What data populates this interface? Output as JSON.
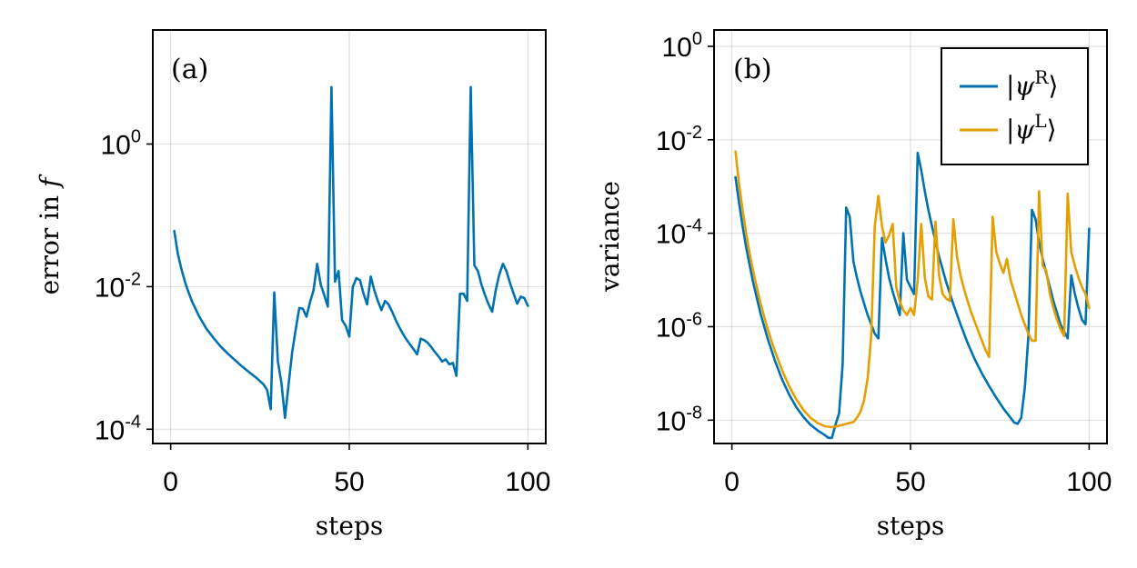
{
  "chart_data": [
    {
      "type": "line",
      "panel_label": "(a)",
      "xlabel": "steps",
      "ylabel": "error in f",
      "ylabel_text": "error in ",
      "ylabel_var": "f",
      "yscale": "log10",
      "xlim": [
        -5,
        105
      ],
      "ylim_log10": [
        -4.2,
        1.6
      ],
      "grid": true,
      "x_ticks": [
        {
          "value": 0,
          "label": "0"
        },
        {
          "value": 50,
          "label": "50"
        },
        {
          "value": 100,
          "label": "100"
        }
      ],
      "y_ticks": [
        {
          "value": 0,
          "base": "10",
          "exp": "0"
        },
        {
          "value": -2,
          "base": "10",
          "exp": "-2"
        },
        {
          "value": -4,
          "base": "10",
          "exp": "-4"
        }
      ],
      "series": [
        {
          "name": "error",
          "color": "#0072b2",
          "points": [
            [
              1,
              -1.22
            ],
            [
              2,
              -1.54
            ],
            [
              3,
              -1.75
            ],
            [
              4,
              -1.93
            ],
            [
              5,
              -2.08
            ],
            [
              6,
              -2.21
            ],
            [
              8,
              -2.42
            ],
            [
              10,
              -2.59
            ],
            [
              12,
              -2.72
            ],
            [
              14,
              -2.84
            ],
            [
              16,
              -2.94
            ],
            [
              18,
              -3.03
            ],
            [
              20,
              -3.12
            ],
            [
              22,
              -3.2
            ],
            [
              24,
              -3.28
            ],
            [
              26,
              -3.37
            ],
            [
              27,
              -3.45
            ],
            [
              28,
              -3.72
            ],
            [
              29,
              -2.08
            ],
            [
              30,
              -3.05
            ],
            [
              31,
              -3.35
            ],
            [
              32,
              -3.84
            ],
            [
              33,
              -3.38
            ],
            [
              34,
              -2.92
            ],
            [
              35,
              -2.6
            ],
            [
              36,
              -2.3
            ],
            [
              37,
              -2.31
            ],
            [
              38,
              -2.42
            ],
            [
              39,
              -2.22
            ],
            [
              40,
              -2.05
            ],
            [
              41,
              -1.68
            ],
            [
              42,
              -1.97
            ],
            [
              43,
              -2.12
            ],
            [
              44,
              -2.28
            ],
            [
              45,
              0.8
            ],
            [
              46,
              -1.93
            ],
            [
              47,
              -1.78
            ],
            [
              48,
              -2.47
            ],
            [
              49,
              -2.55
            ],
            [
              50,
              -2.7
            ],
            [
              51,
              -2.0
            ],
            [
              52,
              -1.88
            ],
            [
              53,
              -1.91
            ],
            [
              54,
              -2.1
            ],
            [
              55,
              -2.25
            ],
            [
              56,
              -1.86
            ],
            [
              57,
              -2.05
            ],
            [
              58,
              -2.2
            ],
            [
              59,
              -2.33
            ],
            [
              60,
              -2.2
            ],
            [
              61,
              -2.25
            ],
            [
              62,
              -2.35
            ],
            [
              63,
              -2.47
            ],
            [
              64,
              -2.57
            ],
            [
              65,
              -2.66
            ],
            [
              66,
              -2.74
            ],
            [
              67,
              -2.81
            ],
            [
              68,
              -2.88
            ],
            [
              69,
              -2.95
            ],
            [
              70,
              -2.73
            ],
            [
              71,
              -2.75
            ],
            [
              72,
              -2.79
            ],
            [
              73,
              -2.85
            ],
            [
              74,
              -2.92
            ],
            [
              75,
              -2.98
            ],
            [
              76,
              -3.05
            ],
            [
              77,
              -3.02
            ],
            [
              78,
              -3.09
            ],
            [
              79,
              -3.07
            ],
            [
              80,
              -3.25
            ],
            [
              81,
              -2.1
            ],
            [
              82,
              -2.1
            ],
            [
              83,
              -2.2
            ],
            [
              84,
              0.8
            ],
            [
              85,
              -1.7
            ],
            [
              86,
              -1.78
            ],
            [
              87,
              -1.97
            ],
            [
              88,
              -2.12
            ],
            [
              89,
              -2.25
            ],
            [
              90,
              -2.35
            ],
            [
              91,
              -2.05
            ],
            [
              92,
              -1.83
            ],
            [
              93,
              -1.68
            ],
            [
              94,
              -1.78
            ],
            [
              95,
              -1.95
            ],
            [
              96,
              -2.1
            ],
            [
              97,
              -2.24
            ],
            [
              98,
              -2.14
            ],
            [
              99,
              -2.16
            ],
            [
              100,
              -2.27
            ]
          ]
        }
      ]
    },
    {
      "type": "line",
      "panel_label": "(b)",
      "xlabel": "steps",
      "ylabel": "variance",
      "yscale": "log10",
      "xlim": [
        -5,
        105
      ],
      "ylim_log10": [
        -8.5,
        0.35
      ],
      "grid": true,
      "legend_position": "top-right",
      "x_ticks": [
        {
          "value": 0,
          "label": "0"
        },
        {
          "value": 50,
          "label": "50"
        },
        {
          "value": 100,
          "label": "100"
        }
      ],
      "y_ticks": [
        {
          "value": 0,
          "base": "10",
          "exp": "0"
        },
        {
          "value": -2,
          "base": "10",
          "exp": "-2"
        },
        {
          "value": -4,
          "base": "10",
          "exp": "-4"
        },
        {
          "value": -6,
          "base": "10",
          "exp": "-6"
        },
        {
          "value": -8,
          "base": "10",
          "exp": "-8"
        }
      ],
      "series": [
        {
          "name": "|ψR⟩",
          "legend_psi": "|ψ",
          "legend_sup": "R",
          "legend_close": "⟩",
          "color": "#0072b2",
          "points": [
            [
              1,
              -2.8
            ],
            [
              2,
              -3.35
            ],
            [
              3,
              -3.85
            ],
            [
              4,
              -4.3
            ],
            [
              5,
              -4.7
            ],
            [
              6,
              -5.07
            ],
            [
              8,
              -5.72
            ],
            [
              10,
              -6.25
            ],
            [
              12,
              -6.72
            ],
            [
              14,
              -7.12
            ],
            [
              16,
              -7.45
            ],
            [
              18,
              -7.72
            ],
            [
              20,
              -7.93
            ],
            [
              22,
              -8.1
            ],
            [
              24,
              -8.22
            ],
            [
              26,
              -8.32
            ],
            [
              27,
              -8.38
            ],
            [
              28,
              -8.38
            ],
            [
              29,
              -8.1
            ],
            [
              30,
              -7.85
            ],
            [
              31,
              -6.8
            ],
            [
              32,
              -3.45
            ],
            [
              33,
              -3.65
            ],
            [
              34,
              -4.6
            ],
            [
              35,
              -4.95
            ],
            [
              36,
              -5.25
            ],
            [
              37,
              -5.5
            ],
            [
              38,
              -5.75
            ],
            [
              39,
              -5.95
            ],
            [
              40,
              -6.15
            ],
            [
              41,
              -6.25
            ],
            [
              42,
              -4.1
            ],
            [
              43,
              -4.55
            ],
            [
              44,
              -4.95
            ],
            [
              45,
              -5.25
            ],
            [
              46,
              -5.5
            ],
            [
              47,
              -5.75
            ],
            [
              48,
              -4.0
            ],
            [
              49,
              -5.0
            ],
            [
              50,
              -5.15
            ],
            [
              51,
              -5.3
            ],
            [
              52,
              -2.28
            ],
            [
              53,
              -2.65
            ],
            [
              54,
              -3.1
            ],
            [
              55,
              -3.5
            ],
            [
              56,
              -3.85
            ],
            [
              58,
              -4.5
            ],
            [
              60,
              -5.05
            ],
            [
              62,
              -5.52
            ],
            [
              64,
              -5.95
            ],
            [
              66,
              -6.35
            ],
            [
              68,
              -6.7
            ],
            [
              70,
              -7.0
            ],
            [
              72,
              -7.27
            ],
            [
              74,
              -7.52
            ],
            [
              76,
              -7.75
            ],
            [
              78,
              -7.95
            ],
            [
              79,
              -8.05
            ],
            [
              80,
              -8.08
            ],
            [
              81,
              -7.95
            ],
            [
              82,
              -7.3
            ],
            [
              83,
              -6.2
            ],
            [
              84,
              -3.5
            ],
            [
              85,
              -3.7
            ],
            [
              86,
              -4.2
            ],
            [
              87,
              -4.55
            ],
            [
              88,
              -4.85
            ],
            [
              89,
              -5.15
            ],
            [
              90,
              -5.45
            ],
            [
              91,
              -5.7
            ],
            [
              92,
              -5.95
            ],
            [
              93,
              -6.1
            ],
            [
              94,
              -6.25
            ],
            [
              95,
              -4.9
            ],
            [
              96,
              -5.3
            ],
            [
              97,
              -5.6
            ],
            [
              98,
              -5.85
            ],
            [
              99,
              -5.95
            ],
            [
              100,
              -3.9
            ]
          ]
        },
        {
          "name": "|ψL⟩",
          "legend_psi": "|ψ",
          "legend_sup": "L",
          "legend_close": "⟩",
          "color": "#e69f00",
          "points": [
            [
              1,
              -2.25
            ],
            [
              2,
              -2.95
            ],
            [
              3,
              -3.5
            ],
            [
              4,
              -4.0
            ],
            [
              5,
              -4.45
            ],
            [
              6,
              -4.83
            ],
            [
              8,
              -5.5
            ],
            [
              10,
              -6.05
            ],
            [
              12,
              -6.52
            ],
            [
              14,
              -6.92
            ],
            [
              16,
              -7.27
            ],
            [
              18,
              -7.55
            ],
            [
              20,
              -7.78
            ],
            [
              22,
              -7.95
            ],
            [
              24,
              -8.06
            ],
            [
              26,
              -8.13
            ],
            [
              28,
              -8.15
            ],
            [
              30,
              -8.12
            ],
            [
              32,
              -8.08
            ],
            [
              34,
              -8.04
            ],
            [
              35,
              -7.95
            ],
            [
              36,
              -7.82
            ],
            [
              37,
              -7.58
            ],
            [
              38,
              -7.1
            ],
            [
              39,
              -6.2
            ],
            [
              40,
              -3.85
            ],
            [
              41,
              -3.2
            ],
            [
              42,
              -3.85
            ],
            [
              43,
              -4.2
            ],
            [
              44,
              -4.05
            ],
            [
              45,
              -3.8
            ],
            [
              46,
              -5.15
            ],
            [
              47,
              -5.45
            ],
            [
              48,
              -5.65
            ],
            [
              49,
              -5.75
            ],
            [
              50,
              -5.6
            ],
            [
              51,
              -5.75
            ],
            [
              52,
              -5.0
            ],
            [
              53,
              -3.8
            ],
            [
              54,
              -4.95
            ],
            [
              55,
              -5.35
            ],
            [
              56,
              -5.42
            ],
            [
              57,
              -3.75
            ],
            [
              58,
              -4.9
            ],
            [
              59,
              -5.3
            ],
            [
              60,
              -5.4
            ],
            [
              61,
              -5.45
            ],
            [
              62,
              -3.7
            ],
            [
              63,
              -4.5
            ],
            [
              64,
              -4.9
            ],
            [
              65,
              -5.2
            ],
            [
              66,
              -5.45
            ],
            [
              67,
              -5.7
            ],
            [
              68,
              -5.9
            ],
            [
              69,
              -6.1
            ],
            [
              70,
              -6.3
            ],
            [
              71,
              -6.5
            ],
            [
              72,
              -6.65
            ],
            [
              73,
              -3.65
            ],
            [
              74,
              -4.4
            ],
            [
              75,
              -4.65
            ],
            [
              76,
              -4.85
            ],
            [
              77,
              -4.55
            ],
            [
              78,
              -5.0
            ],
            [
              79,
              -5.25
            ],
            [
              80,
              -5.5
            ],
            [
              81,
              -5.75
            ],
            [
              82,
              -5.95
            ],
            [
              83,
              -6.15
            ],
            [
              84,
              -6.3
            ],
            [
              85,
              -6.3
            ],
            [
              86,
              -3.1
            ],
            [
              87,
              -4.7
            ],
            [
              88,
              -4.8
            ],
            [
              89,
              -5.3
            ],
            [
              90,
              -5.6
            ],
            [
              91,
              -5.85
            ],
            [
              92,
              -6.05
            ],
            [
              93,
              -6.2
            ],
            [
              94,
              -3.15
            ],
            [
              95,
              -4.4
            ],
            [
              96,
              -4.7
            ],
            [
              97,
              -4.95
            ],
            [
              98,
              -5.15
            ],
            [
              99,
              -5.3
            ],
            [
              100,
              -5.6
            ]
          ]
        }
      ]
    }
  ]
}
